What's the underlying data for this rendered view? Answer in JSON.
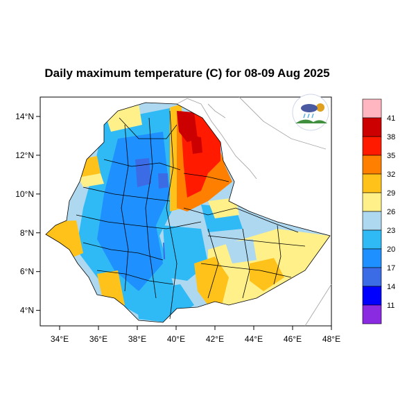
{
  "title": "Daily maximum temperature (C) for 08-09 Aug 2025",
  "map": {
    "lon_range": [
      33,
      48
    ],
    "lat_range": [
      3.2,
      15
    ],
    "x_ticks": [
      "34°E",
      "36°E",
      "38°E",
      "40°E",
      "42°E",
      "44°E",
      "46°E",
      "48°E"
    ],
    "y_ticks": [
      "14°N",
      "12°N",
      "10°N",
      "8°N",
      "6°N",
      "4°N"
    ]
  },
  "colorbar": {
    "labels": [
      "41",
      "38",
      "35",
      "32",
      "29",
      "26",
      "23",
      "20",
      "17",
      "14",
      "11"
    ],
    "colors": [
      "#ffb6c1",
      "#cc0000",
      "#ff1a00",
      "#ff7f00",
      "#ffc21a",
      "#fff08a",
      "#add8f0",
      "#2fbaf5",
      "#1e90ff",
      "#3c6be6",
      "#0000ff",
      "#8a2be2"
    ]
  },
  "logo": {
    "name": "weather-agency-logo",
    "colors": {
      "cloud": "#4a5aa0",
      "hill": "#3f8f3f",
      "sun": "#e0a020",
      "rain": "#5ab0e0"
    }
  }
}
